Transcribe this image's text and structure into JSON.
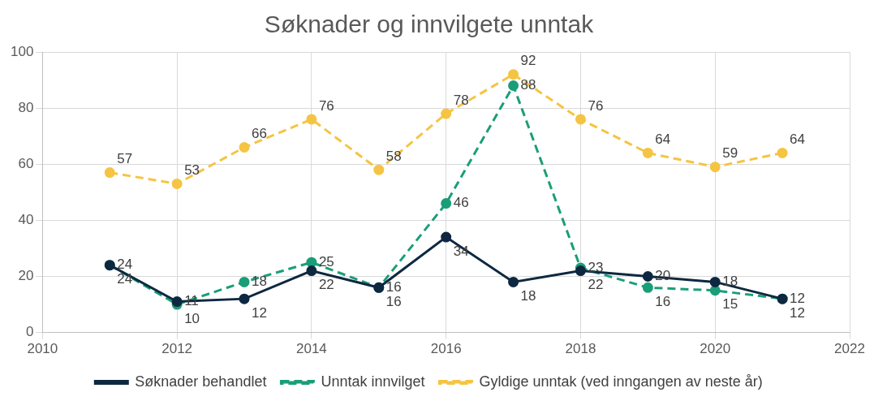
{
  "chart_data": {
    "type": "line",
    "title": "Søknader og innvilgete unntak",
    "x": [
      2011,
      2012,
      2013,
      2014,
      2015,
      2016,
      2017,
      2018,
      2019,
      2020,
      2021
    ],
    "series": [
      {
        "name": "Søknader behandlet",
        "color": "#0e2841",
        "line_style": "solid",
        "marker": "circle",
        "values": [
          24,
          11,
          12,
          22,
          16,
          34,
          18,
          22,
          20,
          18,
          12
        ]
      },
      {
        "name": "Unntak innvilget",
        "color": "#1a9e78",
        "line_style": "dashed",
        "marker": "circle",
        "values": [
          24,
          10,
          18,
          25,
          16,
          46,
          88,
          23,
          16,
          15,
          12
        ]
      },
      {
        "name": "Gyldige unntak (ved inngangen av neste år)",
        "color": "#f5c443",
        "line_style": "dashed",
        "marker": "circle",
        "values": [
          57,
          53,
          66,
          76,
          58,
          78,
          92,
          76,
          64,
          59,
          64
        ]
      }
    ],
    "xlim": [
      2010,
      2022
    ],
    "xticks": [
      2010,
      2012,
      2014,
      2016,
      2018,
      2020,
      2022
    ],
    "ylim": [
      0,
      100
    ],
    "yticks": [
      0,
      20,
      40,
      60,
      80,
      100
    ],
    "grid": true,
    "legend": "bottom",
    "data_labels": true
  }
}
